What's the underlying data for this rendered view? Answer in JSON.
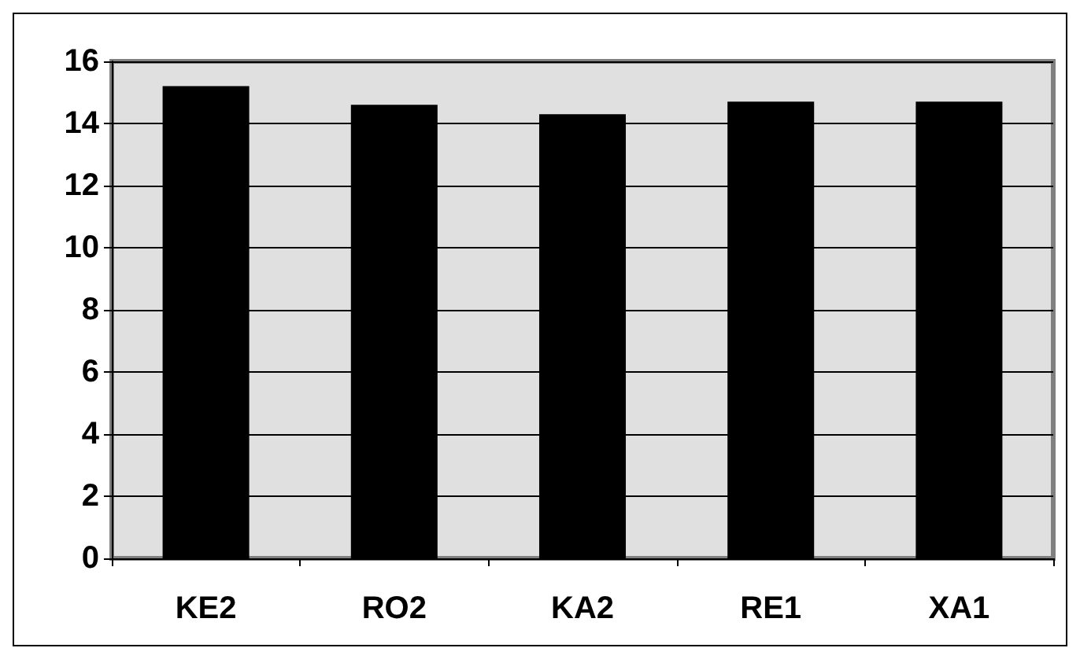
{
  "chart_data": {
    "type": "bar",
    "categories": [
      "KE2",
      "RO2",
      "KA2",
      "RE1",
      "XA1"
    ],
    "values": [
      15.2,
      14.6,
      14.3,
      14.7,
      14.7
    ],
    "color": "#000000",
    "ylim": [
      0,
      16
    ],
    "yticks": [
      0,
      2,
      4,
      6,
      8,
      10,
      12,
      14,
      16
    ],
    "grid": "y"
  }
}
